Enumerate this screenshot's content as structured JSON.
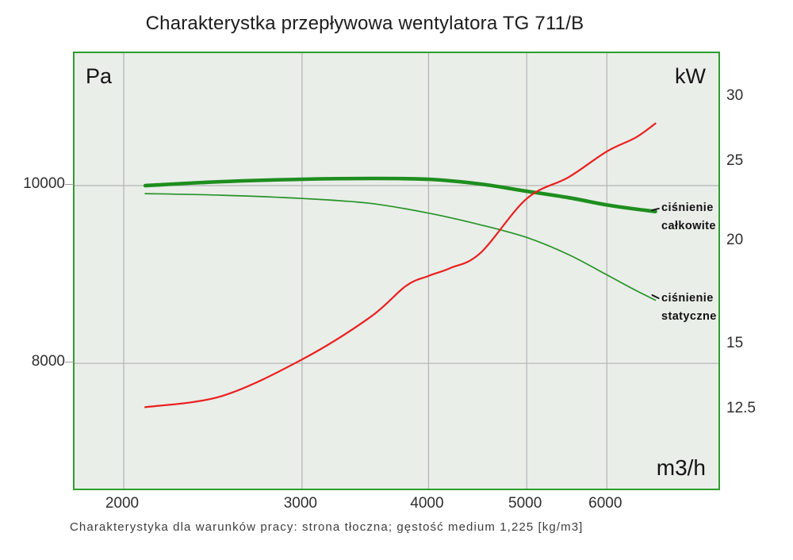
{
  "title": "Charakterystka przepływowa wentylatora TG 711/B",
  "caption": "Charakterystyka dla warunków pracy: strona tłoczna; gęstość medium 1,225 [kg/m3]",
  "axes": {
    "left_unit": "Pa",
    "right_unit": "kW",
    "x_unit": "m3/h"
  },
  "labels": {
    "total_l1": "ciśnienie",
    "total_l2": "całkowite",
    "static_l1": "ciśnienie",
    "static_l2": "statyczne"
  },
  "colors": {
    "plot_background": "#e9eee9",
    "plot_border": "#2f9e2f",
    "grid": "#b3b3b3",
    "total_pressure": "#1e8e1e",
    "static_pressure": "#279327",
    "power": "#ea1f1f"
  },
  "chart_data": {
    "type": "line",
    "title": "Charakterystka przepływowa wentylatora TG 711/B",
    "xlabel": "m3/h",
    "ylabel_left": "Pa",
    "ylabel_right": "kW",
    "x_scale": "log",
    "y_scale": "log",
    "grid": true,
    "x_ticks": [
      2000,
      3000,
      4000,
      5000,
      6000
    ],
    "y_left_ticks": [
      10000,
      8000
    ],
    "y_right_ticks": [
      30,
      25,
      20,
      15,
      12.5
    ],
    "x_range": [
      1790,
      7770
    ],
    "y_left_range": [
      6820,
      11810
    ],
    "y_right_range": [
      10,
      34
    ],
    "legend_position": "inline-right",
    "series": [
      {
        "name": "cisnienie-calkowite",
        "label": "ciśnienie całkowite",
        "axis": "left",
        "unit": "Pa",
        "color": "#1e8e1e",
        "width": 4.6,
        "points": [
          [
            2100,
            10000
          ],
          [
            2500,
            10050
          ],
          [
            3000,
            10080
          ],
          [
            3500,
            10090
          ],
          [
            4000,
            10080
          ],
          [
            4500,
            10020
          ],
          [
            5000,
            9930
          ],
          [
            5500,
            9850
          ],
          [
            6000,
            9760
          ],
          [
            6400,
            9710
          ],
          [
            6700,
            9680
          ]
        ]
      },
      {
        "name": "cisnienie-statyczne",
        "label": "ciśnienie statyczne",
        "axis": "left",
        "unit": "Pa",
        "color": "#279327",
        "width": 1.7,
        "points": [
          [
            2100,
            9900
          ],
          [
            2500,
            9880
          ],
          [
            3000,
            9840
          ],
          [
            3500,
            9780
          ],
          [
            4000,
            9660
          ],
          [
            4500,
            9520
          ],
          [
            5000,
            9370
          ],
          [
            5500,
            9170
          ],
          [
            6000,
            8940
          ],
          [
            6400,
            8770
          ],
          [
            6700,
            8660
          ]
        ]
      },
      {
        "name": "power",
        "label": "",
        "axis": "right",
        "unit": "kW",
        "color": "#ea1f1f",
        "width": 2.2,
        "points": [
          [
            2100,
            12.6
          ],
          [
            2500,
            13.0
          ],
          [
            3000,
            14.4
          ],
          [
            3500,
            16.2
          ],
          [
            3800,
            17.7
          ],
          [
            4000,
            18.2
          ],
          [
            4200,
            18.6
          ],
          [
            4500,
            19.4
          ],
          [
            5000,
            22.6
          ],
          [
            5500,
            24.0
          ],
          [
            6000,
            25.8
          ],
          [
            6400,
            26.8
          ],
          [
            6700,
            27.9
          ]
        ]
      }
    ]
  }
}
